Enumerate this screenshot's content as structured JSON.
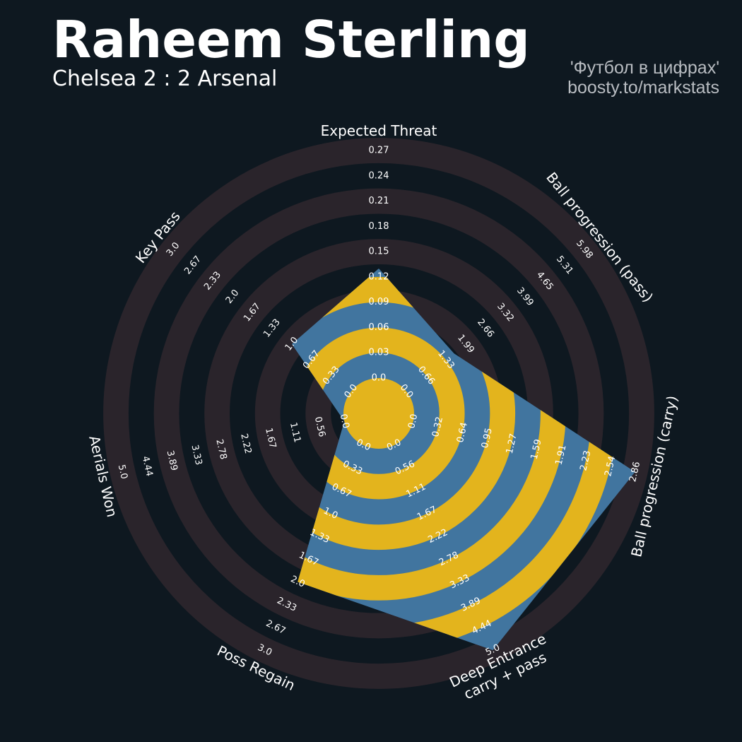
{
  "header": {
    "title": "Raheem Sterling",
    "subtitle": "Chelsea 2 : 2 Arsenal",
    "credit_line1": "'Футбол в цифрах'",
    "credit_line2": "boosty.to/markstats"
  },
  "colors": {
    "background": "#0e1820",
    "band_dark": "#0e1820",
    "band_light": "#2a242b",
    "player_fill": "#41759f",
    "player_ring": "#e3b41d",
    "text": "#ffffff",
    "credit": "#b9bdc2"
  },
  "chart_data": {
    "type": "radar",
    "title": "Raheem Sterling",
    "subtitle": "Chelsea 2 : 2 Arsenal",
    "params": [
      {
        "label": "Expected Threat",
        "lines": [
          "Expected Threat"
        ],
        "value": 0.13,
        "ticks": [
          "0.0",
          "0.03",
          "0.06",
          "0.09",
          "0.12",
          "0.15",
          "0.18",
          "0.21",
          "0.24",
          "0.27"
        ]
      },
      {
        "label": "Ball progression (pass)",
        "lines": [
          "Ball progression (pass)"
        ],
        "value": 1.6,
        "ticks": [
          "0.0",
          "0.66",
          "1.33",
          "1.99",
          "2.66",
          "3.32",
          "3.99",
          "4.65",
          "5.31",
          "5.98"
        ]
      },
      {
        "label": "Ball progression (carry)",
        "lines": [
          "Ball progression (carry)"
        ],
        "value": 2.86,
        "ticks": [
          "0.0",
          "0.32",
          "0.64",
          "0.95",
          "1.27",
          "1.59",
          "1.91",
          "2.23",
          "2.54",
          "2.86"
        ]
      },
      {
        "label": "Deep Entrance carry + pass",
        "lines": [
          "Deep Entrance",
          "carry + pass"
        ],
        "value": 5.0,
        "ticks": [
          "0.0",
          "0.56",
          "1.11",
          "1.67",
          "2.22",
          "2.78",
          "3.33",
          "3.89",
          "4.44",
          "5.0"
        ]
      },
      {
        "label": "Poss Regain",
        "lines": [
          "Poss Regain"
        ],
        "value": 2.0,
        "ticks": [
          "0.0",
          "0.33",
          "0.67",
          "1.0",
          "1.33",
          "1.67",
          "2.0",
          "2.33",
          "2.67",
          "3.0"
        ]
      },
      {
        "label": "Aerials Won",
        "lines": [
          "Aerials Won"
        ],
        "value": 0.0,
        "ticks": [
          "0.0",
          "0.56",
          "1.11",
          "1.67",
          "2.22",
          "2.78",
          "3.33",
          "3.89",
          "4.44",
          "5.0"
        ]
      },
      {
        "label": "Key Pass",
        "lines": [
          "Key Pass"
        ],
        "value": 1.0,
        "ticks": [
          "0.0",
          "0.33",
          "0.67",
          "1.0",
          "1.33",
          "1.67",
          "2.0",
          "2.33",
          "2.67",
          "3.0"
        ]
      }
    ]
  }
}
